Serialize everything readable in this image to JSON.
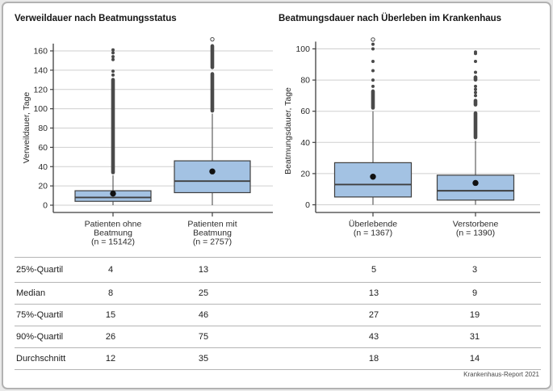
{
  "figure": {
    "footer": "Krankenhaus-Report 2021"
  },
  "colors": {
    "box_fill": "#a3c2e3",
    "box_stroke": "#3f3f3f",
    "median": "#3f3f3f",
    "grid": "#cfcfcf",
    "axis": "#3f3f3f",
    "outlier": "#4a4a4a",
    "mean_dot": "#111111",
    "tick_text": "#2a2a2a"
  },
  "chart_data": [
    {
      "type": "boxplot",
      "title": "Verweildauer nach Beatmungsstatus",
      "ylabel": "Verweildauer, Tage",
      "ylim": [
        0,
        175
      ],
      "yticks": [
        0,
        20,
        40,
        60,
        80,
        100,
        120,
        140,
        160
      ],
      "grid": true,
      "categories": [
        {
          "label_lines": [
            "Patienten ohne",
            "Beatmung",
            "(n = 15142)"
          ],
          "n": 15142,
          "q1": 4,
          "median": 8,
          "q3": 15,
          "p90": 26,
          "mean": 12,
          "whisker_low": 0,
          "whisker_high": 31,
          "outlier_dense": [
            [
              32,
              132
            ]
          ],
          "outlier_dots": [
            135,
            139,
            151,
            154,
            158,
            161
          ],
          "outlier_open": []
        },
        {
          "label_lines": [
            "Patienten mit",
            "Beatmung",
            "(n = 2757)"
          ],
          "n": 2757,
          "q1": 13,
          "median": 25,
          "q3": 46,
          "p90": 75,
          "mean": 35,
          "whisker_low": 0,
          "whisker_high": 95,
          "outlier_dense": [
            [
              96,
              138
            ],
            [
              141,
              167
            ]
          ],
          "outlier_dots": [],
          "outlier_open": [
            172
          ]
        }
      ]
    },
    {
      "type": "boxplot",
      "title": "Beatmungsdauer nach Überleben im Krankenhaus",
      "ylabel": "Beatmungsdauer, Tage",
      "ylim": [
        0,
        108
      ],
      "yticks": [
        0,
        20,
        40,
        60,
        80,
        100
      ],
      "grid": true,
      "categories": [
        {
          "label_lines": [
            "Überlebende",
            "(n = 1367)"
          ],
          "n": 1367,
          "q1": 5,
          "median": 13,
          "q3": 27,
          "p90": 43,
          "mean": 18,
          "whisker_low": 0,
          "whisker_high": 60,
          "outlier_dense": [
            [
              61,
              74
            ]
          ],
          "outlier_dots": [
            76,
            80,
            86,
            92,
            100,
            103
          ],
          "outlier_open": [
            106
          ]
        },
        {
          "label_lines": [
            "Verstorbene",
            "(n = 1390)"
          ],
          "n": 1390,
          "q1": 3,
          "median": 9,
          "q3": 19,
          "p90": 31,
          "mean": 14,
          "whisker_low": 0,
          "whisker_high": 41,
          "outlier_dense": [
            [
              42,
              60
            ],
            [
              63,
              68
            ],
            [
              79,
              83
            ]
          ],
          "outlier_dots": [
            70,
            72,
            74,
            76,
            85,
            92,
            97,
            98
          ],
          "outlier_open": []
        }
      ]
    }
  ],
  "table": {
    "rows": [
      {
        "label": "25%-Quartil",
        "values": [
          "4",
          "13",
          "5",
          "3"
        ]
      },
      {
        "label": "Median",
        "values": [
          "8",
          "25",
          "13",
          "9"
        ]
      },
      {
        "label": "75%-Quartil",
        "values": [
          "15",
          "46",
          "27",
          "19"
        ]
      },
      {
        "label": "90%-Quartil",
        "values": [
          "26",
          "75",
          "43",
          "31"
        ]
      },
      {
        "label": "Durchschnitt",
        "values": [
          "12",
          "35",
          "18",
          "14"
        ]
      }
    ]
  }
}
